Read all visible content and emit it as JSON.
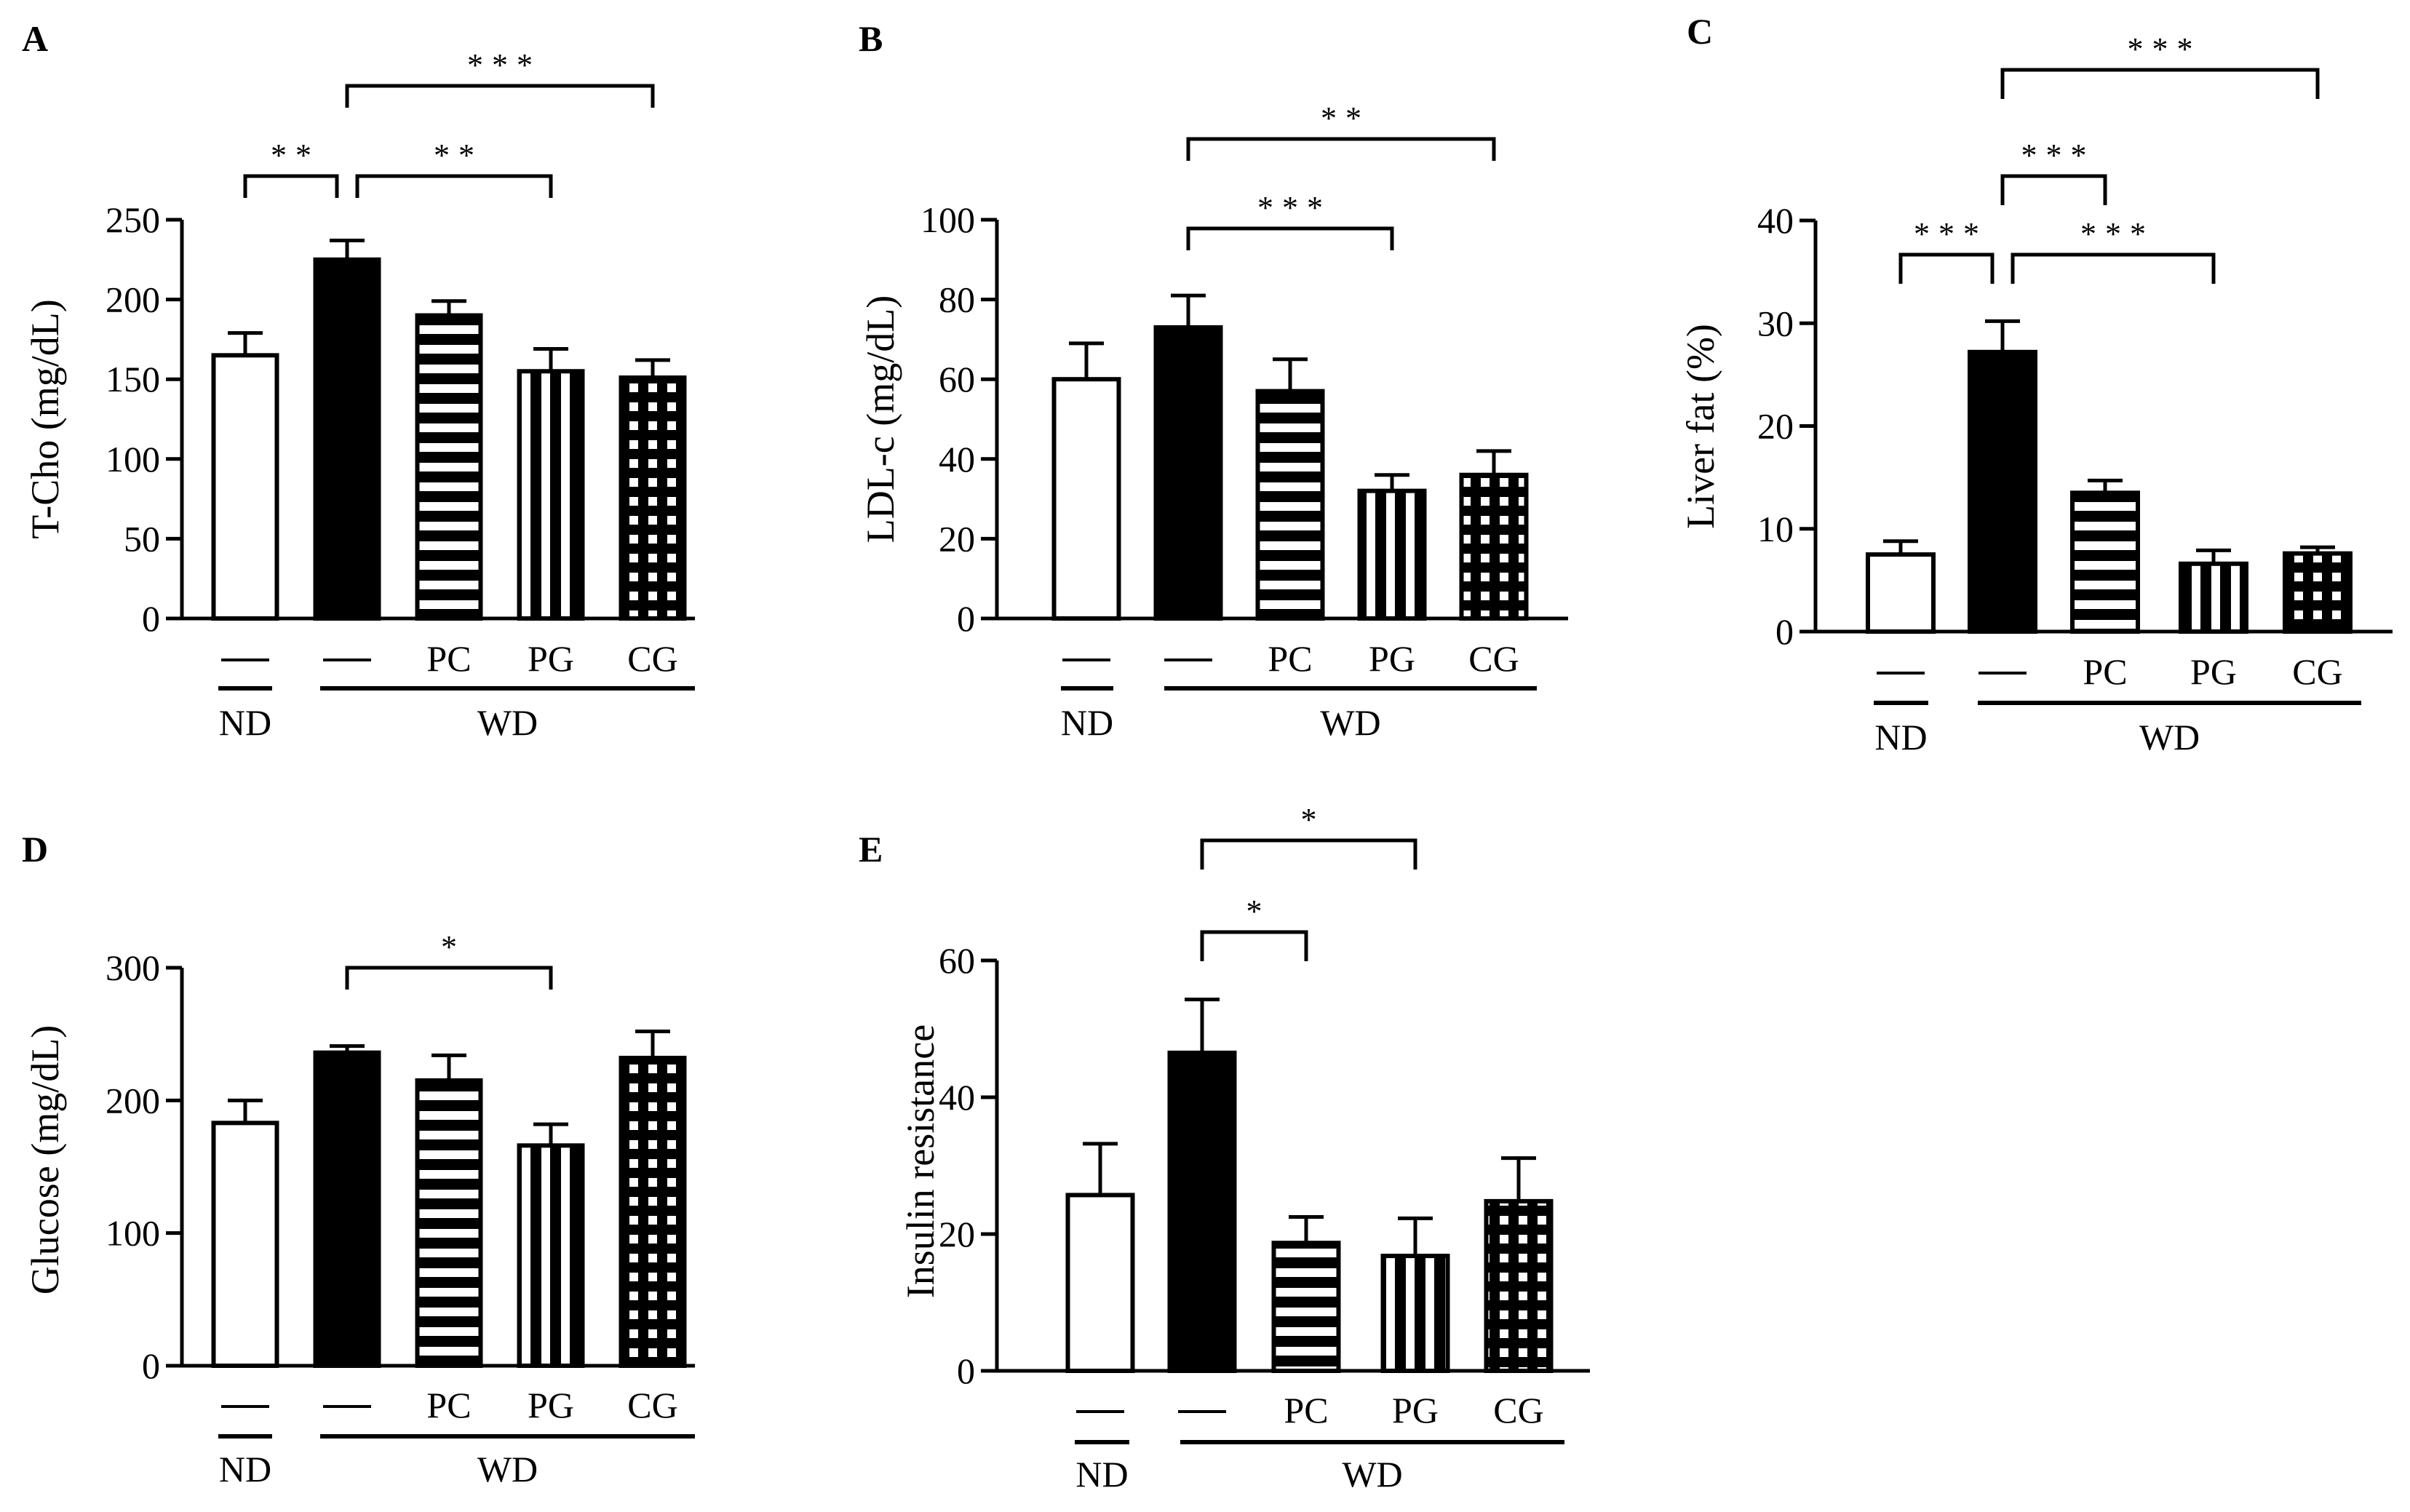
{
  "colors": {
    "ink": "#000000",
    "background": "#ffffff"
  },
  "pattern_legend": {
    "open": "white fill",
    "solid": "black fill",
    "hlines": "horizontal stripes",
    "vlines": "vertical stripes",
    "grid": "checkered grid"
  },
  "chart_data": [
    {
      "id": "A",
      "panel_letter": "A",
      "type": "bar",
      "ylabel": "T-Cho (mg/dL)",
      "ylim": [
        0,
        250
      ],
      "yticks": [
        "0",
        "50",
        "100",
        "150",
        "200",
        "250"
      ],
      "categories": [
        "—",
        "—",
        "PC",
        "PG",
        "CG"
      ],
      "values": [
        165,
        225,
        190,
        155,
        151
      ],
      "errors": [
        14,
        12,
        9,
        14,
        11
      ],
      "patterns": [
        "open",
        "solid",
        "hlines",
        "vlines",
        "grid"
      ],
      "groups": [
        {
          "label": "ND",
          "from": 0,
          "to": 0
        },
        {
          "label": "WD",
          "from": 1,
          "to": 4
        }
      ],
      "significance": [
        {
          "from": 0,
          "to": 1,
          "stars": "**",
          "level": 0
        },
        {
          "from": 1,
          "to": 3,
          "stars": "**",
          "level": 0
        },
        {
          "from": 1,
          "to": 4,
          "stars": "***",
          "level": 1
        }
      ]
    },
    {
      "id": "B",
      "panel_letter": "B",
      "type": "bar",
      "ylabel": "LDL-c (mg/dL)",
      "ylim": [
        0,
        100
      ],
      "yticks": [
        "0",
        "20",
        "40",
        "60",
        "80",
        "100"
      ],
      "categories": [
        "—",
        "—",
        "PC",
        "PG",
        "CG"
      ],
      "values": [
        60,
        73,
        57,
        32,
        36
      ],
      "errors": [
        9,
        8,
        8,
        4,
        6
      ],
      "patterns": [
        "open",
        "solid",
        "hlines",
        "vlines",
        "grid"
      ],
      "groups": [
        {
          "label": "ND",
          "from": 0,
          "to": 0
        },
        {
          "label": "WD",
          "from": 1,
          "to": 4
        }
      ],
      "significance": [
        {
          "from": 1,
          "to": 3,
          "stars": "***",
          "level": 0
        },
        {
          "from": 1,
          "to": 4,
          "stars": "**",
          "level": 1
        }
      ]
    },
    {
      "id": "C",
      "panel_letter": "C",
      "type": "bar",
      "ylabel": "Liver fat (%)",
      "ylim": [
        0,
        40
      ],
      "yticks": [
        "0",
        "10",
        "20",
        "30",
        "40"
      ],
      "categories": [
        "—",
        "—",
        "PC",
        "PG",
        "CG"
      ],
      "values": [
        7.5,
        27.2,
        13.5,
        6.6,
        7.6
      ],
      "errors": [
        1.3,
        3.0,
        1.2,
        1.3,
        0.6
      ],
      "patterns": [
        "open",
        "solid",
        "hlines",
        "vlines",
        "grid"
      ],
      "groups": [
        {
          "label": "ND",
          "from": 0,
          "to": 0
        },
        {
          "label": "WD",
          "from": 1,
          "to": 4
        }
      ],
      "significance": [
        {
          "from": 0,
          "to": 1,
          "stars": "***",
          "level": 0
        },
        {
          "from": 1,
          "to": 3,
          "stars": "***",
          "level": 0
        },
        {
          "from": 1,
          "to": 2,
          "stars": "***",
          "level": 1
        },
        {
          "from": 1,
          "to": 4,
          "stars": "***",
          "level": 2
        }
      ]
    },
    {
      "id": "D",
      "panel_letter": "D",
      "type": "bar",
      "ylabel": "Glucose (mg/dL)",
      "ylim": [
        0,
        300
      ],
      "yticks": [
        "0",
        "100",
        "200",
        "300"
      ],
      "categories": [
        "—",
        "—",
        "PC",
        "PG",
        "CG"
      ],
      "values": [
        183,
        236,
        215,
        166,
        232
      ],
      "errors": [
        17,
        5,
        19,
        16,
        20
      ],
      "patterns": [
        "open",
        "solid",
        "hlines",
        "vlines",
        "grid"
      ],
      "groups": [
        {
          "label": "ND",
          "from": 0,
          "to": 0
        },
        {
          "label": "WD",
          "from": 1,
          "to": 4
        }
      ],
      "significance": [
        {
          "from": 1,
          "to": 3,
          "stars": "*",
          "level": 0
        }
      ]
    },
    {
      "id": "E",
      "panel_letter": "E",
      "type": "bar",
      "ylabel": "Insulin resistance",
      "ylim": [
        0,
        60
      ],
      "yticks": [
        "0",
        "20",
        "40",
        "60"
      ],
      "categories": [
        "—",
        "—",
        "PC",
        "PG",
        "CG"
      ],
      "values": [
        25.7,
        46.5,
        18.7,
        16.8,
        24.8
      ],
      "errors": [
        7.5,
        7.8,
        3.8,
        5.5,
        6.3
      ],
      "patterns": [
        "open",
        "solid",
        "hlines",
        "vlines",
        "grid"
      ],
      "groups": [
        {
          "label": "ND",
          "from": 0,
          "to": 0
        },
        {
          "label": "WD",
          "from": 1,
          "to": 4
        }
      ],
      "significance": [
        {
          "from": 1,
          "to": 2,
          "stars": "*",
          "level": 0
        },
        {
          "from": 1,
          "to": 3,
          "stars": "*",
          "level": 1
        }
      ]
    }
  ]
}
